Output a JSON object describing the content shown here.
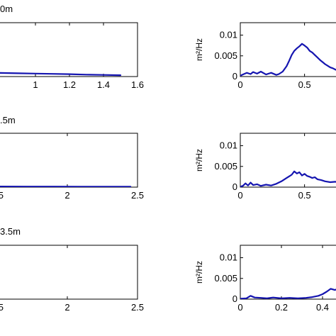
{
  "colors": {
    "series": "#1515b0",
    "axes": "#000000",
    "background": "#ffffff"
  },
  "chart_data": [
    {
      "type": "line",
      "title": "0m",
      "xlabel": "",
      "ylabel": "",
      "xlim": [
        0.75,
        1.6
      ],
      "ylim": [
        0,
        1
      ],
      "xticks": [
        1,
        1.2,
        1.4,
        1.6
      ],
      "xtick_labels": [
        "1",
        "1.2",
        "1.4",
        "1.6"
      ],
      "yticks": [],
      "ytick_labels": [],
      "grid": false,
      "series": [
        {
          "x": [
            0.75,
            0.9,
            1.0,
            1.1,
            1.2,
            1.3,
            1.4,
            1.5
          ],
          "y": [
            0.07,
            0.06,
            0.055,
            0.05,
            0.045,
            0.035,
            0.03,
            0.025
          ]
        }
      ]
    },
    {
      "type": "line",
      "title": "",
      "xlabel": "",
      "ylabel": "m²/Hz",
      "xlim": [
        0,
        0.8
      ],
      "ylim": [
        0,
        0.013
      ],
      "xticks": [
        0,
        0.5
      ],
      "xtick_labels": [
        "0",
        "0.5"
      ],
      "yticks": [
        0,
        0.005,
        0.01
      ],
      "ytick_labels": [
        "0",
        "0.005",
        "0.01"
      ],
      "grid": false,
      "series": [
        {
          "x": [
            0,
            0.02,
            0.05,
            0.08,
            0.1,
            0.13,
            0.16,
            0.2,
            0.24,
            0.28,
            0.3,
            0.33,
            0.36,
            0.38,
            0.4,
            0.42,
            0.44,
            0.46,
            0.48,
            0.5,
            0.52,
            0.54,
            0.56,
            0.58,
            0.6,
            0.62,
            0.64,
            0.66,
            0.68,
            0.7,
            0.72,
            0.74,
            0.76,
            0.78,
            0.8
          ],
          "y": [
            0.0002,
            0.0005,
            0.0009,
            0.0006,
            0.0011,
            0.0007,
            0.0012,
            0.0005,
            0.0009,
            0.0004,
            0.0006,
            0.0012,
            0.0025,
            0.0038,
            0.0052,
            0.0062,
            0.0068,
            0.0073,
            0.0079,
            0.0075,
            0.007,
            0.0062,
            0.0058,
            0.0052,
            0.0046,
            0.004,
            0.0035,
            0.003,
            0.0026,
            0.0022,
            0.002,
            0.0017,
            0.0014,
            0.0012,
            0.001
          ]
        }
      ]
    },
    {
      "type": "line",
      "title": ".5m",
      "xlabel": "",
      "ylabel": "",
      "xlim": [
        1.47,
        2.5
      ],
      "ylim": [
        0,
        1
      ],
      "xticks": [
        1.5,
        2,
        2.5
      ],
      "xtick_labels": [
        "1.5",
        "2",
        "2.5"
      ],
      "yticks": [],
      "ytick_labels": [],
      "grid": false,
      "series": [
        {
          "x": [
            1.47,
            1.7,
            1.9,
            2.1,
            2.3,
            2.45
          ],
          "y": [
            0.012,
            0.011,
            0.01,
            0.009,
            0.008,
            0.008
          ]
        }
      ]
    },
    {
      "type": "line",
      "title": "",
      "xlabel": "",
      "ylabel": "m²/Hz",
      "xlim": [
        0,
        0.8
      ],
      "ylim": [
        0,
        0.013
      ],
      "xticks": [
        0,
        0.5
      ],
      "xtick_labels": [
        "0",
        "0.5"
      ],
      "yticks": [
        0,
        0.005,
        0.01
      ],
      "ytick_labels": [
        "0",
        "0.005",
        "0.01"
      ],
      "grid": false,
      "series": [
        {
          "x": [
            0,
            0.02,
            0.04,
            0.06,
            0.08,
            0.1,
            0.13,
            0.16,
            0.2,
            0.24,
            0.28,
            0.32,
            0.36,
            0.38,
            0.4,
            0.42,
            0.44,
            0.46,
            0.48,
            0.5,
            0.52,
            0.54,
            0.56,
            0.58,
            0.6,
            0.63,
            0.66,
            0.7,
            0.74,
            0.78,
            0.8
          ],
          "y": [
            0.0001,
            0.0003,
            0.0009,
            0.0004,
            0.0011,
            0.0005,
            0.0007,
            0.0003,
            0.0006,
            0.0004,
            0.0008,
            0.0014,
            0.0022,
            0.0026,
            0.003,
            0.0038,
            0.0033,
            0.0036,
            0.0028,
            0.0032,
            0.0027,
            0.0025,
            0.0022,
            0.0024,
            0.0019,
            0.0017,
            0.0014,
            0.0012,
            0.0013,
            0.0011,
            0.001
          ]
        }
      ]
    },
    {
      "type": "line",
      "title": "3.5m",
      "xlabel": "",
      "ylabel": "",
      "xlim": [
        1.47,
        2.5
      ],
      "ylim": [
        0,
        1
      ],
      "xticks": [
        1.5,
        2,
        2.5
      ],
      "xtick_labels": [
        "1.5",
        "2",
        "2.5"
      ],
      "yticks": [],
      "ytick_labels": [],
      "grid": false,
      "series": []
    },
    {
      "type": "line",
      "title": "",
      "xlabel": "",
      "ylabel": "m²/Hz",
      "xlim": [
        0,
        0.5
      ],
      "ylim": [
        0,
        0.013
      ],
      "xticks": [
        0,
        0.2,
        0.4
      ],
      "xtick_labels": [
        "0",
        "0.2",
        "0.4"
      ],
      "yticks": [
        0,
        0.005,
        0.01
      ],
      "ytick_labels": [
        "0",
        "0.005",
        "0.01"
      ],
      "grid": false,
      "series": [
        {
          "x": [
            0,
            0.03,
            0.05,
            0.07,
            0.1,
            0.13,
            0.16,
            0.2,
            0.24,
            0.28,
            0.32,
            0.35,
            0.38,
            0.4,
            0.42,
            0.44,
            0.46,
            0.48,
            0.5
          ],
          "y": [
            0.0001,
            0.0002,
            0.0008,
            0.0004,
            0.0003,
            0.0002,
            0.0004,
            0.0002,
            0.0003,
            0.0002,
            0.0003,
            0.0005,
            0.0008,
            0.0012,
            0.0018,
            0.0025,
            0.0022,
            0.0026,
            0.002
          ]
        }
      ]
    }
  ]
}
